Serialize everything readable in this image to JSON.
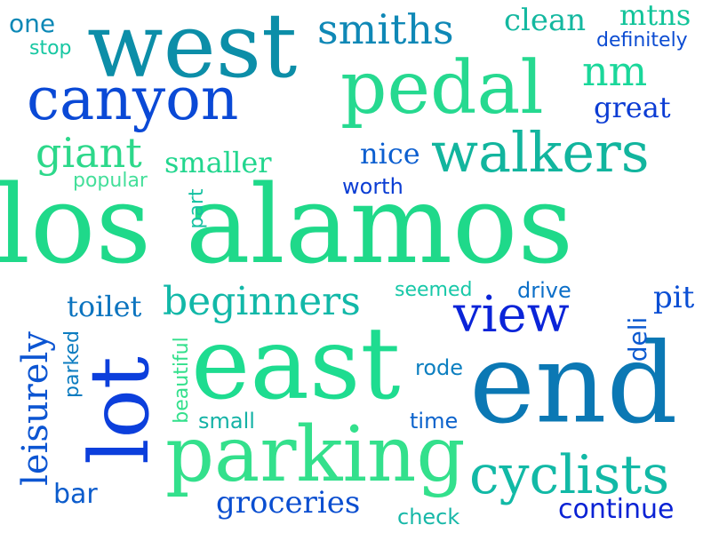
{
  "words": {
    "los_alamos": {
      "text": "los alamos",
      "color": "#1fd98a"
    },
    "east": {
      "text": "east",
      "color": "#1edc90"
    },
    "end": {
      "text": "end",
      "color": "#0b78b4"
    },
    "parking": {
      "text": "parking",
      "color": "#33e08c"
    },
    "lot": {
      "text": "lot",
      "color": "#0c3fdc"
    },
    "west": {
      "text": "west",
      "color": "#0c8ea8"
    },
    "pedal": {
      "text": "pedal",
      "color": "#26d990"
    },
    "canyon": {
      "text": "canyon",
      "color": "#0a49d6"
    },
    "walkers": {
      "text": "walkers",
      "color": "#12b59e"
    },
    "view": {
      "text": "view",
      "color": "#0a24d8"
    },
    "cyclists": {
      "text": "cyclists",
      "color": "#12b9a6"
    },
    "beginners": {
      "text": "beginners",
      "color": "#12b8a8"
    },
    "leisurely": {
      "text": "leisurely",
      "color": "#0c55d2"
    },
    "giant": {
      "text": "giant",
      "color": "#2cd88a"
    },
    "smiths": {
      "text": "smiths",
      "color": "#0f88b6"
    },
    "nm": {
      "text": "nm",
      "color": "#1ad79a"
    },
    "mtns": {
      "text": "mtns",
      "color": "#12c49a"
    },
    "groceries": {
      "text": "groceries",
      "color": "#0a4ed0"
    },
    "continue": {
      "text": "continue",
      "color": "#0a22d4"
    },
    "smaller": {
      "text": "smaller",
      "color": "#22d68e"
    },
    "nice": {
      "text": "nice",
      "color": "#0c5fd0"
    },
    "great": {
      "text": "great",
      "color": "#0c3cd4"
    },
    "clean": {
      "text": "clean",
      "color": "#14b8a0"
    },
    "one": {
      "text": "one",
      "color": "#0b88b6"
    },
    "stop": {
      "text": "stop",
      "color": "#17c7a2"
    },
    "definitely": {
      "text": "definitely",
      "color": "#0c4cd2"
    },
    "popular": {
      "text": "popular",
      "color": "#44df9a"
    },
    "part": {
      "text": "part",
      "color": "#17c2a2"
    },
    "worth": {
      "text": "worth",
      "color": "#0c3ed4"
    },
    "toilet": {
      "text": "toilet",
      "color": "#0c74bf"
    },
    "seemed": {
      "text": "seemed",
      "color": "#18c8a8"
    },
    "drive": {
      "text": "drive",
      "color": "#0c6fc8"
    },
    "pit": {
      "text": "pit",
      "color": "#0a4ed4"
    },
    "deli": {
      "text": "deli",
      "color": "#0c5ad0"
    },
    "parked": {
      "text": "parked",
      "color": "#0c7cc0"
    },
    "beautiful": {
      "text": "beautiful",
      "color": "#33e08c"
    },
    "rode": {
      "text": "rode",
      "color": "#0c7fc0"
    },
    "small": {
      "text": "small",
      "color": "#14b2a6"
    },
    "time": {
      "text": "time",
      "color": "#0c63cc"
    },
    "bar": {
      "text": "bar",
      "color": "#0c5ccc"
    },
    "check": {
      "text": "check",
      "color": "#18b8a8"
    }
  }
}
